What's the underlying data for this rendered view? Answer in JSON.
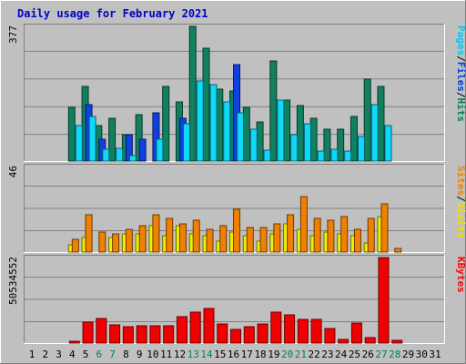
{
  "chart_data": [
    {
      "type": "bar",
      "title": "Daily usage for February 2021",
      "panel": "top",
      "y_max_label": "377",
      "side_legend": [
        {
          "name": "Pages",
          "color": "#00c8f0"
        },
        {
          "name": "/",
          "color": "#000000"
        },
        {
          "name": "Files",
          "color": "#0040e0"
        },
        {
          "name": "/",
          "color": "#000000"
        },
        {
          "name": "Hits",
          "color": "#008060"
        }
      ],
      "categories": [
        "1",
        "2",
        "3",
        "4",
        "5",
        "6",
        "7",
        "8",
        "9",
        "10",
        "11",
        "12",
        "13",
        "14",
        "15",
        "16",
        "17",
        "18",
        "19",
        "20",
        "21",
        "22",
        "23",
        "24",
        "25",
        "26",
        "27",
        "28",
        "29",
        "30",
        "31"
      ],
      "weekend_days": [
        "6",
        "7",
        "13",
        "14",
        "20",
        "21",
        "27",
        "28"
      ],
      "ylim": [
        0,
        377
      ],
      "grid": true,
      "series": [
        {
          "name": "Hits",
          "color": "#108060",
          "values": [
            0,
            0,
            0,
            150,
            210,
            100,
            120,
            75,
            130,
            0,
            210,
            165,
            377,
            315,
            200,
            195,
            150,
            110,
            280,
            170,
            155,
            120,
            90,
            90,
            125,
            230,
            210,
            0,
            0,
            0,
            0
          ]
        },
        {
          "name": "Files",
          "color": "#1040e0",
          "values": [
            0,
            0,
            0,
            0,
            158,
            62,
            0,
            75,
            60,
            135,
            0,
            120,
            0,
            0,
            0,
            270,
            0,
            0,
            0,
            0,
            0,
            0,
            0,
            0,
            0,
            0,
            0,
            0,
            0,
            0,
            0
          ]
        },
        {
          "name": "Pages",
          "color": "#10d8f8",
          "values": [
            0,
            0,
            0,
            100,
            125,
            32,
            35,
            15,
            0,
            62,
            0,
            105,
            225,
            215,
            165,
            135,
            88,
            30,
            170,
            75,
            105,
            28,
            32,
            28,
            70,
            158,
            100,
            0,
            0,
            0,
            0
          ]
        }
      ]
    },
    {
      "type": "bar",
      "panel": "middle",
      "y_max_label": "46",
      "side_legend": [
        {
          "name": "Sites",
          "color": "#f08000"
        },
        {
          "name": "/",
          "color": "#000000"
        },
        {
          "name": "Visits",
          "color": "#f0e000"
        }
      ],
      "categories": [
        "1",
        "2",
        "3",
        "4",
        "5",
        "6",
        "7",
        "8",
        "9",
        "10",
        "11",
        "12",
        "13",
        "14",
        "15",
        "16",
        "17",
        "18",
        "19",
        "20",
        "21",
        "22",
        "23",
        "24",
        "25",
        "26",
        "27",
        "28",
        "29",
        "30",
        "31"
      ],
      "ylim": [
        0,
        46
      ],
      "grid": true,
      "series": [
        {
          "name": "Visits",
          "color": "#f0f000",
          "values": [
            0,
            0,
            0,
            4,
            8,
            0,
            8,
            10,
            10,
            14,
            9,
            14,
            10,
            9,
            6,
            11,
            9,
            6,
            10,
            15,
            12,
            9,
            11,
            10,
            9,
            5,
            19,
            0,
            0,
            0,
            0
          ]
        },
        {
          "name": "Sites",
          "color": "#f08000",
          "values": [
            0,
            0,
            0,
            7,
            20,
            11,
            10,
            12,
            14,
            20,
            18,
            15,
            17,
            12,
            14,
            23,
            13,
            13,
            15,
            20,
            30,
            18,
            17,
            19,
            12,
            18,
            26,
            2,
            0,
            0,
            0
          ]
        }
      ]
    },
    {
      "type": "bar",
      "panel": "bottom",
      "y_max_label": "50534552",
      "side_legend": [
        {
          "name": "KBytes",
          "color": "#ff0000"
        }
      ],
      "categories": [
        "1",
        "2",
        "3",
        "4",
        "5",
        "6",
        "7",
        "8",
        "9",
        "10",
        "11",
        "12",
        "13",
        "14",
        "15",
        "16",
        "17",
        "18",
        "19",
        "20",
        "21",
        "22",
        "23",
        "24",
        "25",
        "26",
        "27",
        "28",
        "29",
        "30",
        "31"
      ],
      "ylim": [
        0,
        50534552
      ],
      "grid": true,
      "series": [
        {
          "name": "KBytes",
          "color": "#f00000",
          "values": [
            0,
            0,
            0,
            1010000,
            12300000,
            14500000,
            10600000,
            9700000,
            10300000,
            10300000,
            10300000,
            15700000,
            18500000,
            20600000,
            11400000,
            8300000,
            9500000,
            11300000,
            18500000,
            16600000,
            14200000,
            14200000,
            8400000,
            2300000,
            12000000,
            3100000,
            50534552,
            1600000,
            0,
            0,
            0
          ]
        }
      ]
    }
  ]
}
